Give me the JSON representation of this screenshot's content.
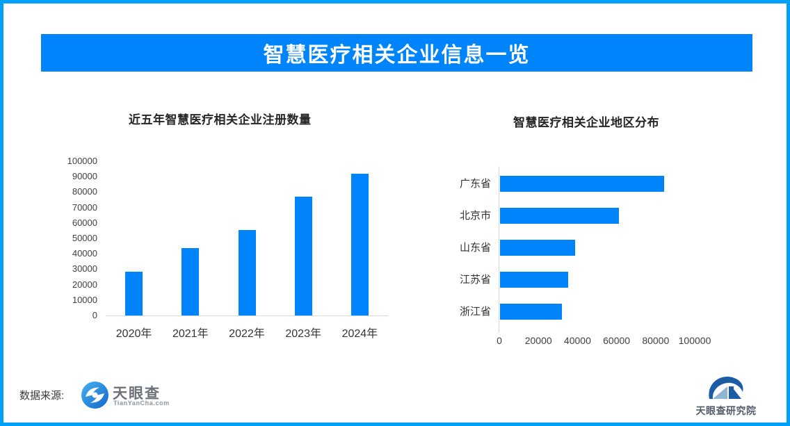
{
  "header": {
    "title": "智慧医疗相关企业信息一览",
    "bg_color": "#0084fc",
    "text_color": "#ffffff"
  },
  "colors": {
    "accent_blue": "#0084fc",
    "frame_blue": "#00a0f8",
    "axis_gray": "#d9d9d9"
  },
  "chart_data": [
    {
      "type": "bar",
      "orientation": "vertical",
      "title": "近五年智慧医疗相关企业注册数量",
      "categories": [
        "2020年",
        "2021年",
        "2022年",
        "2023年",
        "2024年"
      ],
      "values": [
        28500,
        43700,
        55400,
        77000,
        92000
      ],
      "xlabel": "",
      "ylabel": "",
      "ylim": [
        0,
        100000
      ],
      "ytick_step": 10000,
      "grid": false,
      "legend": "none",
      "bar_color": "#0084fc"
    },
    {
      "type": "bar",
      "orientation": "horizontal",
      "title": "智慧医疗相关企业地区分布",
      "categories": [
        "广东省",
        "北京市",
        "山东省",
        "江苏省",
        "浙江省"
      ],
      "values": [
        84000,
        61000,
        38500,
        35000,
        31500
      ],
      "xlabel": "",
      "ylabel": "",
      "xlim": [
        0,
        100000
      ],
      "xticks": [
        0,
        20000,
        40000,
        60000,
        80000,
        100000
      ],
      "grid": false,
      "legend": "none",
      "bar_color": "#0084fc"
    }
  ],
  "footer": {
    "source_label": "数据来源:",
    "tianyancha": {
      "name": "天眼查",
      "domain": "TianYanCha.com"
    },
    "research": {
      "name": "天眼查研究院"
    }
  }
}
